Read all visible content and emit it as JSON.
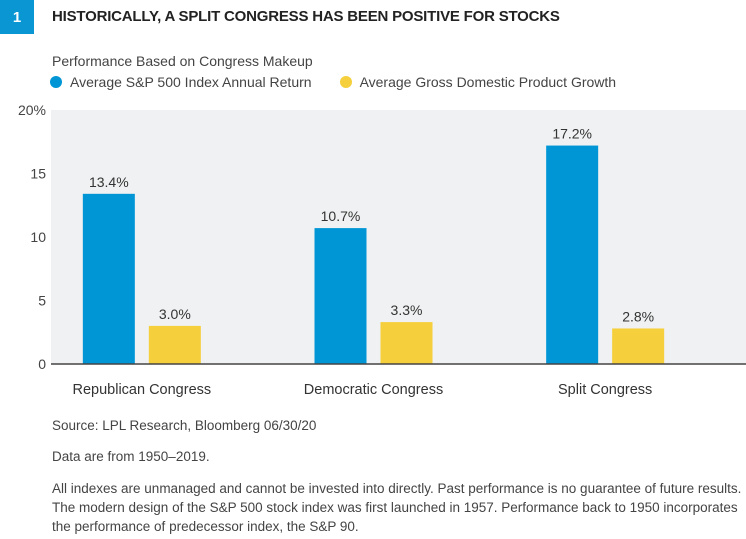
{
  "figure_number": "1",
  "title": "HISTORICALLY, A SPLIT CONGRESS HAS BEEN POSITIVE FOR STOCKS",
  "chart_data": {
    "type": "bar",
    "subtitle": "Performance Based on Congress Makeup",
    "categories": [
      "Republican Congress",
      "Democratic Congress",
      "Split Congress"
    ],
    "series": [
      {
        "name": "Average S&P 500 Index Annual Return",
        "values": [
          13.4,
          10.7,
          17.2
        ],
        "labels": [
          "13.4%",
          "10.7%",
          "17.2%"
        ],
        "color": "#0096d6"
      },
      {
        "name": "Average Gross Domestic Product Growth",
        "values": [
          3.0,
          3.3,
          2.8
        ],
        "labels": [
          "3.0%",
          "3.3%",
          "2.8%"
        ],
        "color": "#f5cf3c"
      }
    ],
    "ylim": [
      0,
      20
    ],
    "yticks": [
      0,
      5,
      10,
      15,
      20
    ],
    "ytick_labels": [
      "0",
      "5",
      "10",
      "15",
      "20%"
    ],
    "legend_position": "top-left",
    "grid": false,
    "plot_background": "#f0f1f2"
  },
  "footer": {
    "source": "Source: LPL Research, Bloomberg   06/30/20",
    "data_note": "Data are from 1950–2019.",
    "disclaimer": "All indexes are unmanaged and cannot be invested into directly. Past performance is no guarantee of future results. The modern design of the S&P 500 stock index was first launched in 1957. Performance back to 1950 incorporates the performance of predecessor index, the S&P 90."
  }
}
